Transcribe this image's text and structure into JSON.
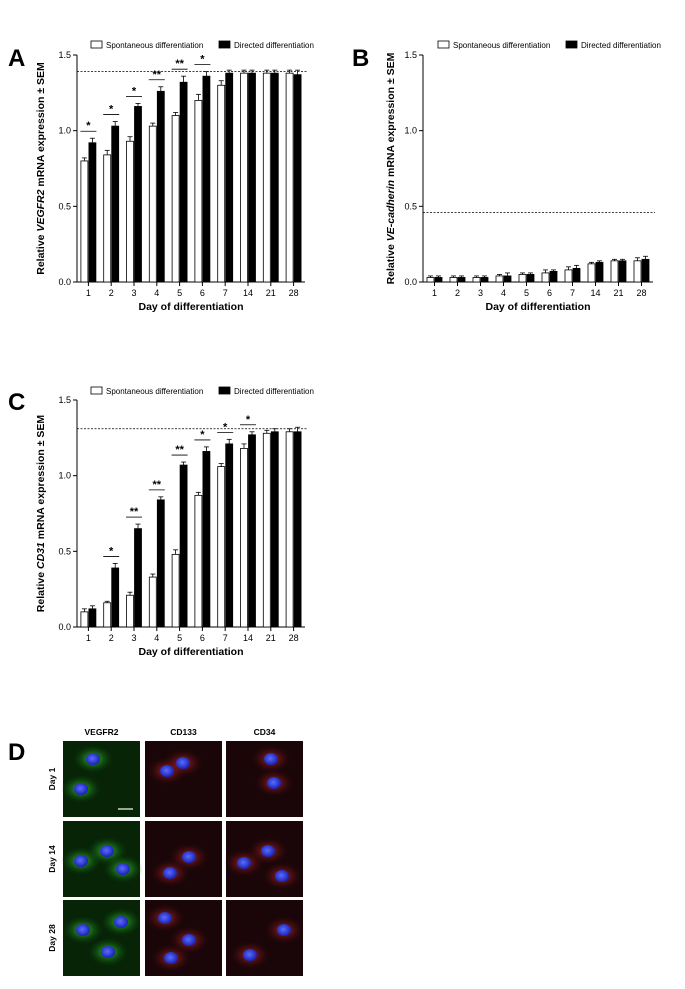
{
  "panels": {
    "A": {
      "letter": "A"
    },
    "B": {
      "letter": "B"
    },
    "C": {
      "letter": "C"
    },
    "D": {
      "letter": "D"
    }
  },
  "colors": {
    "spontaneous_fill": "#ffffff",
    "directed_fill": "#000000",
    "nucleus_blue": "#2a3cff",
    "vegfr2_green": "#22a82a",
    "cd_red": "#c0202a"
  },
  "chart_data": [
    {
      "id": "A",
      "type": "bar",
      "ylabel_prefix": "Relative ",
      "ylabel_gene": "VEGFR2",
      "ylabel_suffix": " mRNA expression ± SEM",
      "xlabel": "Day of differentiation",
      "categories": [
        "1",
        "2",
        "3",
        "4",
        "5",
        "6",
        "7",
        "14",
        "21",
        "28"
      ],
      "ylim": [
        0,
        1.5
      ],
      "yticks": [
        0.0,
        0.5,
        1.0,
        1.5
      ],
      "ytick_labels": [
        "0.0",
        "0.5",
        "1.0",
        "1.5"
      ],
      "reference_line": 1.39,
      "legend": [
        "Spontaneous differentiation",
        "Directed differentiation"
      ],
      "series": [
        {
          "name": "Spontaneous differentiation",
          "values": [
            0.8,
            0.84,
            0.93,
            1.03,
            1.1,
            1.2,
            1.3,
            1.38,
            1.38,
            1.38
          ],
          "errors": [
            0.02,
            0.03,
            0.03,
            0.02,
            0.02,
            0.04,
            0.03,
            0.02,
            0.02,
            0.02
          ]
        },
        {
          "name": "Directed differentiation",
          "values": [
            0.92,
            1.03,
            1.16,
            1.26,
            1.32,
            1.36,
            1.38,
            1.38,
            1.38,
            1.37
          ],
          "errors": [
            0.03,
            0.03,
            0.02,
            0.03,
            0.04,
            0.03,
            0.02,
            0.02,
            0.02,
            0.03
          ]
        }
      ],
      "significance": [
        {
          "category": "1",
          "label": "*"
        },
        {
          "category": "2",
          "label": "*"
        },
        {
          "category": "3",
          "label": "*"
        },
        {
          "category": "4",
          "label": "**"
        },
        {
          "category": "5",
          "label": "**"
        },
        {
          "category": "6",
          "label": "*"
        }
      ]
    },
    {
      "id": "B",
      "type": "bar",
      "ylabel_prefix": "Relative ",
      "ylabel_gene": "VE-cadherin",
      "ylabel_suffix": " mRNA expression ± SEM",
      "xlabel": "Day of differentiation",
      "categories": [
        "1",
        "2",
        "3",
        "4",
        "5",
        "6",
        "7",
        "14",
        "21",
        "28"
      ],
      "ylim": [
        0,
        1.5
      ],
      "yticks": [
        0.0,
        0.5,
        1.0,
        1.5
      ],
      "ytick_labels": [
        "0.0",
        "0.5",
        "1.0",
        "1.5"
      ],
      "reference_line": 0.46,
      "legend": [
        "Spontaneous differentiation",
        "Directed differentiation"
      ],
      "series": [
        {
          "name": "Spontaneous differentiation",
          "values": [
            0.03,
            0.03,
            0.03,
            0.04,
            0.05,
            0.06,
            0.08,
            0.12,
            0.14,
            0.14
          ],
          "errors": [
            0.01,
            0.01,
            0.01,
            0.01,
            0.01,
            0.02,
            0.02,
            0.01,
            0.01,
            0.02
          ]
        },
        {
          "name": "Directed differentiation",
          "values": [
            0.03,
            0.03,
            0.03,
            0.04,
            0.05,
            0.07,
            0.09,
            0.13,
            0.14,
            0.15
          ],
          "errors": [
            0.01,
            0.01,
            0.01,
            0.02,
            0.01,
            0.01,
            0.02,
            0.01,
            0.01,
            0.02
          ]
        }
      ],
      "significance": []
    },
    {
      "id": "C",
      "type": "bar",
      "ylabel_prefix": "Relative ",
      "ylabel_gene": "CD31",
      "ylabel_suffix": " mRNA expression ± SEM",
      "xlabel": "Day of differentiation",
      "categories": [
        "1",
        "2",
        "3",
        "4",
        "5",
        "6",
        "7",
        "14",
        "21",
        "28"
      ],
      "ylim": [
        0,
        1.5
      ],
      "yticks": [
        0.0,
        0.5,
        1.0,
        1.5
      ],
      "ytick_labels": [
        "0.0",
        "0.5",
        "1.0",
        "1.5"
      ],
      "reference_line": 1.31,
      "legend": [
        "Spontaneous differentiation",
        "Directed differentiation"
      ],
      "series": [
        {
          "name": "Spontaneous differentiation",
          "values": [
            0.1,
            0.16,
            0.21,
            0.33,
            0.48,
            0.87,
            1.06,
            1.18,
            1.28,
            1.29
          ],
          "errors": [
            0.02,
            0.01,
            0.02,
            0.02,
            0.03,
            0.02,
            0.02,
            0.03,
            0.02,
            0.02
          ]
        },
        {
          "name": "Directed differentiation",
          "values": [
            0.12,
            0.39,
            0.65,
            0.84,
            1.07,
            1.16,
            1.21,
            1.27,
            1.29,
            1.29
          ],
          "errors": [
            0.02,
            0.03,
            0.03,
            0.02,
            0.02,
            0.03,
            0.03,
            0.02,
            0.02,
            0.03
          ]
        }
      ],
      "significance": [
        {
          "category": "2",
          "label": "*"
        },
        {
          "category": "3",
          "label": "**"
        },
        {
          "category": "4",
          "label": "**"
        },
        {
          "category": "5",
          "label": "**"
        },
        {
          "category": "6",
          "label": "*"
        },
        {
          "category": "7",
          "label": "*"
        },
        {
          "category": "14",
          "label": "*"
        }
      ]
    }
  ],
  "micrographs": {
    "columns": [
      "VEGFR2",
      "CD133",
      "CD34"
    ],
    "rows": [
      "Day 1",
      "Day 14",
      "Day 28"
    ]
  }
}
